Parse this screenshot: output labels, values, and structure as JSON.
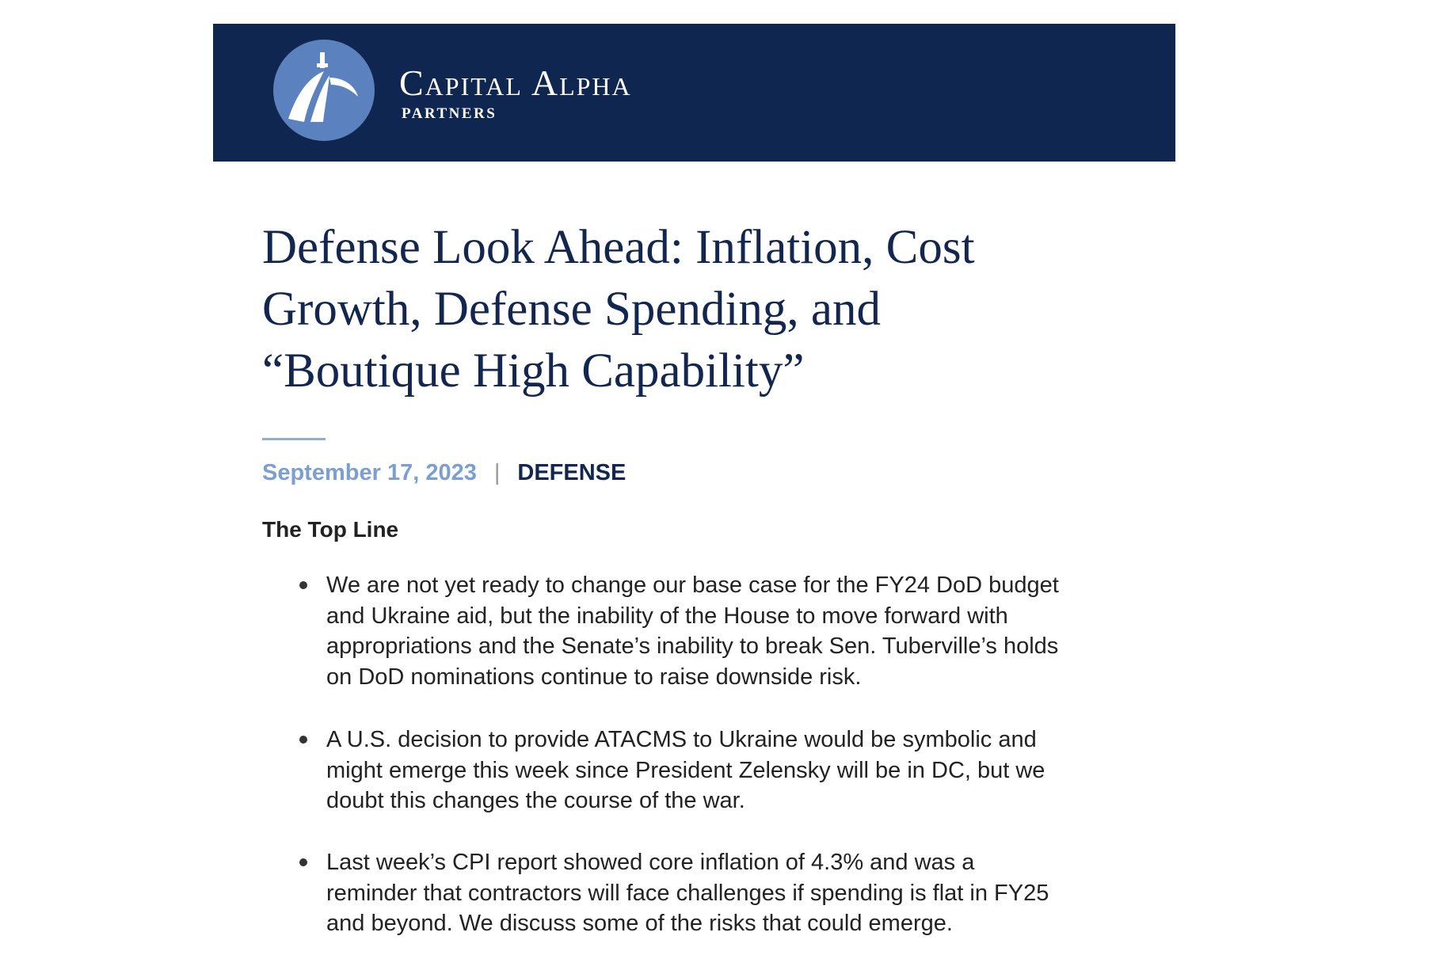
{
  "header": {
    "brand": "Capital Alpha",
    "subbrand": "PARTNERS"
  },
  "article": {
    "title_lines": [
      "Defense Look Ahead: Inflation, Cost",
      "Growth, Defense Spending, and",
      "“Boutique High Capability”"
    ],
    "date": "September 17, 2023",
    "separator": "|",
    "category": "DEFENSE",
    "section_heading": "The Top Line",
    "bullets": [
      [
        "We are not yet ready to change our base case for the FY24 DoD budget",
        "and Ukraine aid, but the inability of the House to move forward with",
        "appropriations and the Senate’s inability to break Sen. Tuberville’s holds",
        "on DoD nominations continue to raise downside risk."
      ],
      [
        "A U.S. decision to provide ATACMS to Ukraine would be symbolic and",
        "might emerge this week since President Zelensky will be in DC, but we",
        "doubt this changes the course of the war."
      ],
      [
        "Last week’s CPI report showed core inflation of 4.3% and was a",
        "reminder that contractors will face challenges if spending is flat in FY25",
        "and beyond. We discuss some of the risks that could emerge."
      ]
    ]
  }
}
